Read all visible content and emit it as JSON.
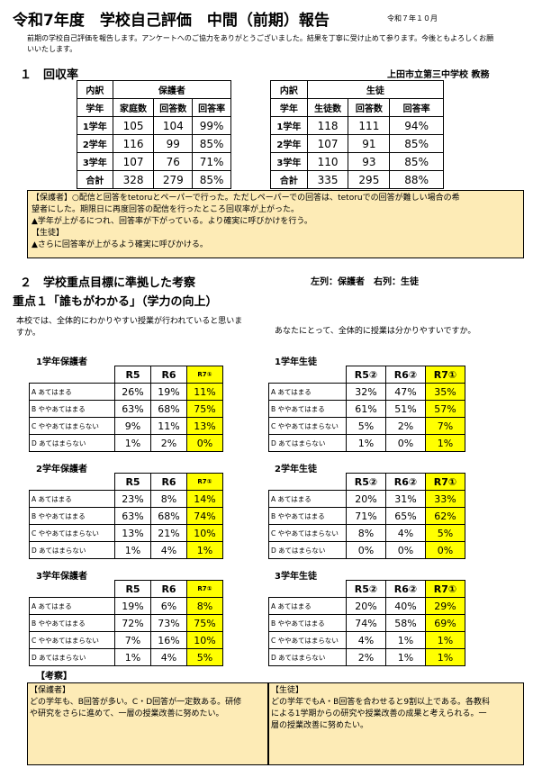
{
  "header": {
    "title": "令和7年度　学校自己評価　中間（前期）報告",
    "date": "令和７年１０月",
    "intro": "前期の学校自己評価を報告します。アンケートへのご協力をありがとうございました。結果を丁寧に受け止めて参ります。今後ともよろしくお願いいたします。"
  },
  "section1": {
    "heading": "１　回収率",
    "school": "上田市立第三中学校 教務",
    "guardian": {
      "col_category": "内訳",
      "group": "保護者",
      "headers": [
        "学年",
        "家庭数",
        "回答数",
        "回答率"
      ],
      "rows": [
        [
          "1学年",
          "105",
          "104",
          "99%"
        ],
        [
          "2学年",
          "116",
          "99",
          "85%"
        ],
        [
          "3学年",
          "107",
          "76",
          "71%"
        ],
        [
          "合計",
          "328",
          "279",
          "85%"
        ]
      ]
    },
    "student": {
      "col_category": "内訳",
      "group": "生徒",
      "headers": [
        "学年",
        "生徒数",
        "回答数",
        "回答率"
      ],
      "rows": [
        [
          "1学年",
          "118",
          "111",
          "94%"
        ],
        [
          "2学年",
          "107",
          "91",
          "85%"
        ],
        [
          "3学年",
          "110",
          "93",
          "85%"
        ],
        [
          "合計",
          "335",
          "295",
          "88%"
        ]
      ]
    },
    "note_lines": [
      "【保護者】○配信と回答をtetoruとペーパーで行った。ただしペーパーでの回答は、tetoruでの回答が難しい場合の希",
      "望者にした。期限日に再度回答の配信を行ったところ回収率が上がった。",
      "▲学年が上がるにつれ、回答率が下がっている。より確実に呼びかけを行う。",
      "【生徒】",
      "▲さらに回答率が上がるよう確実に呼びかける。"
    ]
  },
  "section2": {
    "heading": "２　学校重点目標に準拠した考察",
    "legend": "左列：保護者　右列：生徒",
    "subheading": "重点１「誰もがわかる」（学力の向上）",
    "question_guardian": "本校では、全体的にわかりやすい授業が行われていると思いますか。",
    "question_student": "あなたにとって、全体的に授業は分かりやすいですか。",
    "options": [
      "A あてはまる",
      "B ややあてはまる",
      "C ややあてはまらない",
      "D あてはまらない"
    ],
    "tables": [
      {
        "label": "1学年保護者",
        "headers": [
          "R5",
          "R6",
          "R7①"
        ],
        "rows": [
          [
            "26%",
            "19%",
            "11%"
          ],
          [
            "63%",
            "68%",
            "75%"
          ],
          [
            "9%",
            "11%",
            "13%"
          ],
          [
            "1%",
            "2%",
            "0%"
          ]
        ]
      },
      {
        "label": "1学年生徒",
        "headers": [
          "R5②",
          "R6②",
          "R7①"
        ],
        "rows": [
          [
            "32%",
            "47%",
            "35%"
          ],
          [
            "61%",
            "51%",
            "57%"
          ],
          [
            "5%",
            "2%",
            "7%"
          ],
          [
            "1%",
            "0%",
            "1%"
          ]
        ]
      },
      {
        "label": "2学年保護者",
        "headers": [
          "R5",
          "R6",
          "R7①"
        ],
        "rows": [
          [
            "23%",
            "8%",
            "14%"
          ],
          [
            "63%",
            "68%",
            "74%"
          ],
          [
            "13%",
            "21%",
            "10%"
          ],
          [
            "1%",
            "4%",
            "1%"
          ]
        ]
      },
      {
        "label": "2学年生徒",
        "headers": [
          "R5②",
          "R6②",
          "R7①"
        ],
        "rows": [
          [
            "20%",
            "31%",
            "33%"
          ],
          [
            "71%",
            "65%",
            "62%"
          ],
          [
            "8%",
            "4%",
            "5%"
          ],
          [
            "0%",
            "0%",
            "0%"
          ]
        ]
      },
      {
        "label": "3学年保護者",
        "headers": [
          "R5",
          "R6",
          "R7①"
        ],
        "rows": [
          [
            "19%",
            "6%",
            "8%"
          ],
          [
            "72%",
            "73%",
            "75%"
          ],
          [
            "7%",
            "16%",
            "10%"
          ],
          [
            "1%",
            "4%",
            "5%"
          ]
        ]
      },
      {
        "label": "3学年生徒",
        "headers": [
          "R5②",
          "R6②",
          "R7①"
        ],
        "rows": [
          [
            "20%",
            "40%",
            "29%"
          ],
          [
            "74%",
            "58%",
            "69%"
          ],
          [
            "4%",
            "1%",
            "1%"
          ],
          [
            "2%",
            "1%",
            "1%"
          ]
        ]
      }
    ],
    "consideration_label": "【考察】",
    "guardian_note_lines": [
      "【保護者】",
      "どの学年も、B回答が多い。C・D回答が一定数ある。研修",
      "や研究をさらに進めて、一層の授業改善に努めたい。"
    ],
    "student_note_lines": [
      "【生徒】",
      "どの学年でもA・B回答を合わせると9割以上である。各教科",
      "による1学期からの研究や授業改善の成果と考えられる。一",
      "層の授業改善に努めたい。"
    ]
  },
  "colors": {
    "note_bg": "#fdebb6",
    "highlight": "#ffff00"
  }
}
